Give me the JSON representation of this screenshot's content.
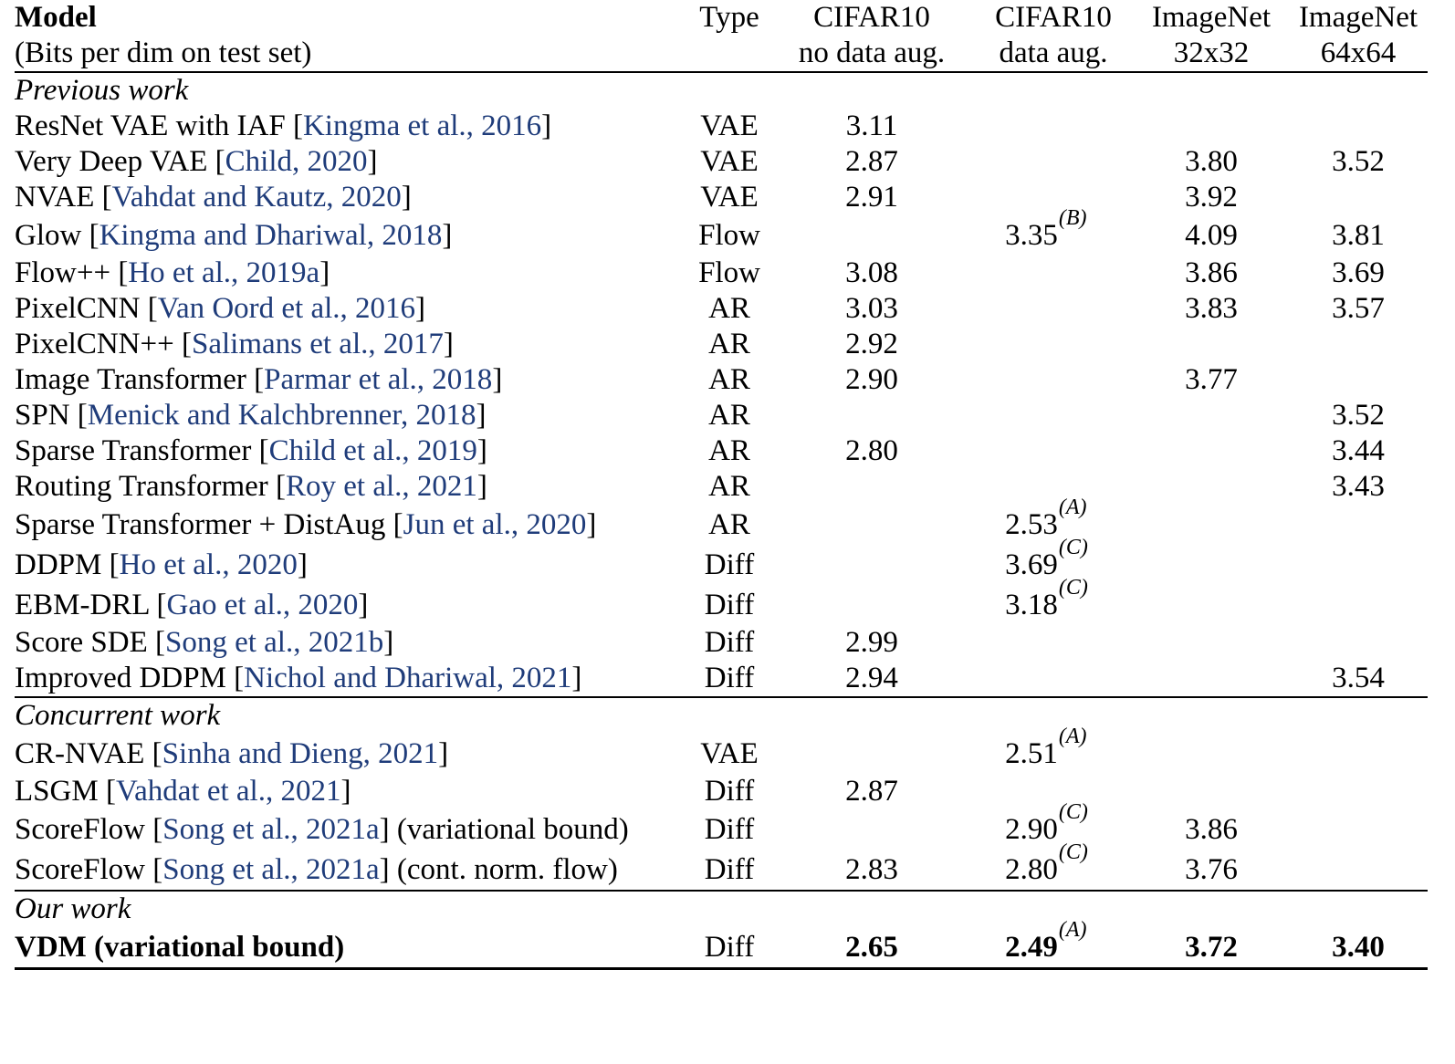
{
  "header": {
    "model": "Model",
    "model_sub": "(Bits per dim on test set)",
    "type": "Type",
    "col1": "CIFAR10",
    "col1_sub": "no data aug.",
    "col2": "CIFAR10",
    "col2_sub": "data aug.",
    "col3": "ImageNet",
    "col3_sub": "32x32",
    "col4": "ImageNet",
    "col4_sub": "64x64"
  },
  "sections": [
    {
      "title": "Previous work",
      "rows": [
        {
          "name": "ResNet VAE with IAF",
          "cite": "Kingma et al., 2016",
          "type": "VAE",
          "c1": "3.11",
          "c2": "",
          "c2sup": "",
          "c3": "",
          "c4": ""
        },
        {
          "name": "Very Deep VAE",
          "cite": "Child, 2020",
          "type": "VAE",
          "c1": "2.87",
          "c2": "",
          "c2sup": "",
          "c3": "3.80",
          "c4": "3.52"
        },
        {
          "name": "NVAE",
          "cite": "Vahdat and Kautz, 2020",
          "type": "VAE",
          "c1": "2.91",
          "c2": "",
          "c2sup": "",
          "c3": "3.92",
          "c4": ""
        },
        {
          "name": "Glow",
          "cite": "Kingma and Dhariwal, 2018",
          "type": "Flow",
          "c1": "",
          "c2": "3.35",
          "c2sup": "(B)",
          "c3": "4.09",
          "c4": "3.81"
        },
        {
          "name": "Flow++",
          "cite": "Ho et al., 2019a",
          "type": "Flow",
          "c1": "3.08",
          "c2": "",
          "c2sup": "",
          "c3": "3.86",
          "c4": "3.69"
        },
        {
          "name": "PixelCNN",
          "cite": "Van Oord et al., 2016",
          "type": "AR",
          "c1": "3.03",
          "c2": "",
          "c2sup": "",
          "c3": "3.83",
          "c4": "3.57"
        },
        {
          "name": "PixelCNN++",
          "cite": "Salimans et al., 2017",
          "type": "AR",
          "c1": "2.92",
          "c2": "",
          "c2sup": "",
          "c3": "",
          "c4": ""
        },
        {
          "name": "Image Transformer",
          "cite": "Parmar et al., 2018",
          "type": "AR",
          "c1": "2.90",
          "c2": "",
          "c2sup": "",
          "c3": "3.77",
          "c4": ""
        },
        {
          "name": "SPN ",
          "cite": "Menick and Kalchbrenner, 2018",
          "type": "AR",
          "c1": "",
          "c2": "",
          "c2sup": "",
          "c3": "",
          "c4": "3.52"
        },
        {
          "name": "Sparse Transformer",
          "cite": "Child et al., 2019",
          "type": "AR",
          "c1": "2.80",
          "c2": "",
          "c2sup": "",
          "c3": "",
          "c4": "3.44"
        },
        {
          "name": "Routing Transformer",
          "cite": "Roy et al., 2021",
          "type": "AR",
          "c1": "",
          "c2": "",
          "c2sup": "",
          "c3": "",
          "c4": "3.43"
        },
        {
          "name": "Sparse Transformer + DistAug",
          "cite": "Jun et al., 2020",
          "type": "AR",
          "c1": "",
          "c2": "2.53",
          "c2sup": "(A)",
          "c3": "",
          "c4": ""
        },
        {
          "name": "DDPM",
          "cite": "Ho et al., 2020",
          "type": "Diff",
          "c1": "",
          "c2": "3.69",
          "c2sup": "(C)",
          "c3": "",
          "c4": ""
        },
        {
          "name": "EBM-DRL",
          "cite": "Gao et al., 2020",
          "type": "Diff",
          "c1": "",
          "c2": "3.18",
          "c2sup": "(C)",
          "c3": "",
          "c4": ""
        },
        {
          "name": "Score SDE",
          "cite": "Song et al., 2021b",
          "type": "Diff",
          "c1": "2.99",
          "c2": "",
          "c2sup": "",
          "c3": "",
          "c4": ""
        },
        {
          "name": "Improved DDPM",
          "cite": "Nichol and Dhariwal, 2021",
          "type": "Diff",
          "c1": "2.94",
          "c2": "",
          "c2sup": "",
          "c3": "",
          "c4": "3.54"
        }
      ]
    },
    {
      "title": "Concurrent work",
      "rows": [
        {
          "name": "CR-NVAE",
          "cite": "Sinha and Dieng, 2021",
          "type": "VAE",
          "c1": "",
          "c2": "2.51",
          "c2sup": "(A)",
          "c3": "",
          "c4": ""
        },
        {
          "name": "LSGM",
          "cite": "Vahdat et al., 2021",
          "type": "Diff",
          "c1": "2.87",
          "c2": "",
          "c2sup": "",
          "c3": "",
          "c4": ""
        },
        {
          "name": "ScoreFlow",
          "cite": "Song et al., 2021a",
          "suffix": " (variational bound)",
          "type": "Diff",
          "c1": "",
          "c2": "2.90",
          "c2sup": "(C)",
          "c3": "3.86",
          "c4": ""
        },
        {
          "name": "ScoreFlow",
          "cite": "Song et al., 2021a",
          "suffix": " (cont. norm. flow)",
          "type": "Diff",
          "c1": "2.83",
          "c2": "2.80",
          "c2sup": "(C)",
          "c3": "3.76",
          "c4": ""
        }
      ]
    }
  ],
  "ours": {
    "title": "Our work",
    "name": "VDM (variational bound)",
    "type": "Diff",
    "c1": "2.65",
    "c2": "2.49",
    "c2sup": "(A)",
    "c3": "3.72",
    "c4": "3.40"
  }
}
